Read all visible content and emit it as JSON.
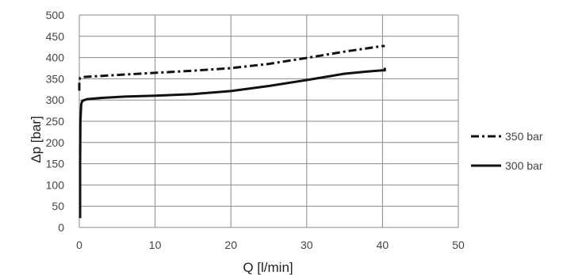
{
  "chart_data": {
    "type": "line",
    "title": "",
    "xlabel": "Q [l/min]",
    "ylabel": "Δp [bar]",
    "xlim": [
      0,
      50
    ],
    "ylim": [
      0,
      500
    ],
    "x_ticks": [
      "0",
      "10",
      "20",
      "30",
      "40",
      "50"
    ],
    "y_ticks": [
      "0",
      "50",
      "100",
      "150",
      "200",
      "250",
      "300",
      "350",
      "400",
      "450",
      "500"
    ],
    "grid": true,
    "legend_position": "right",
    "series": [
      {
        "name": "350 bar",
        "style": "dash-dot",
        "color": "#111111",
        "x": [
          0,
          0,
          0.1,
          0.3,
          5,
          10,
          15,
          20,
          25,
          30,
          35,
          40,
          40.3
        ],
        "y": [
          322,
          345,
          352,
          354,
          359,
          364,
          369,
          375,
          385,
          399,
          414,
          427,
          427
        ]
      },
      {
        "name": "300 bar",
        "style": "solid",
        "color": "#111111",
        "x": [
          0.1,
          0.1,
          0.15,
          0.25,
          0.4,
          1,
          3,
          6,
          10,
          15,
          20,
          25,
          30,
          35,
          38,
          40,
          40.3,
          40.3
        ],
        "y": [
          22,
          150,
          250,
          290,
          298,
          302,
          305,
          308,
          310,
          314,
          321,
          333,
          347,
          362,
          367,
          370,
          370,
          376
        ]
      }
    ]
  }
}
